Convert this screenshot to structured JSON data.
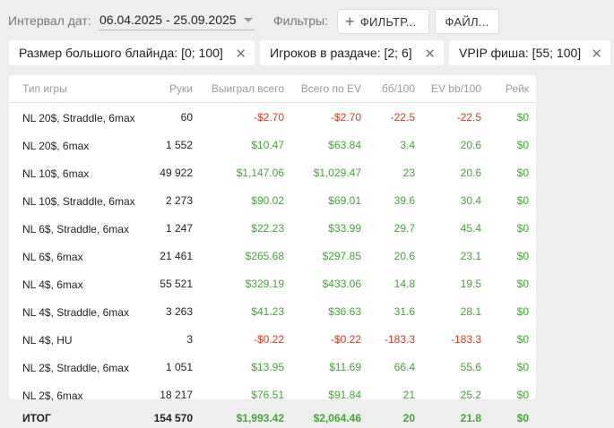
{
  "header": {
    "interval_label": "Интервал дат:",
    "date_range": "06.04.2025 - 25.09.2025",
    "filters_label": "Фильтры:",
    "filter_button_label": "ФИЛЬТР...",
    "file_button_label": "ФАЙЛ..."
  },
  "chips": [
    {
      "label": "Размер большого блайнда: [0; 100]"
    },
    {
      "label": "Игроков в раздаче: [2; 6]"
    },
    {
      "label": "VPIP фиша: [55; 100]"
    }
  ],
  "table": {
    "columns": [
      "Тип игры",
      "Руки",
      "Выиграл всего",
      "Всего по EV",
      "бб/100",
      "EV bb/100",
      "Рейк"
    ],
    "rows": [
      {
        "game": "NL 20$, Straddle, 6max",
        "hands": "60",
        "won": "-$2.70",
        "ev": "-$2.70",
        "bb100": "-22.5",
        "evbb100": "-22.5",
        "rake": "$0"
      },
      {
        "game": "NL 20$, 6max",
        "hands": "1 552",
        "won": "$10.47",
        "ev": "$63.84",
        "bb100": "3.4",
        "evbb100": "20.6",
        "rake": "$0"
      },
      {
        "game": "NL 10$, 6max",
        "hands": "49 922",
        "won": "$1,147.06",
        "ev": "$1,029.47",
        "bb100": "23",
        "evbb100": "20.6",
        "rake": "$0"
      },
      {
        "game": "NL 10$, Straddle, 6max",
        "hands": "2 273",
        "won": "$90.02",
        "ev": "$69.01",
        "bb100": "39.6",
        "evbb100": "30.4",
        "rake": "$0"
      },
      {
        "game": "NL 6$, Straddle, 6max",
        "hands": "1 247",
        "won": "$22.23",
        "ev": "$33.99",
        "bb100": "29.7",
        "evbb100": "45.4",
        "rake": "$0"
      },
      {
        "game": "NL 6$, 6max",
        "hands": "21 461",
        "won": "$265.68",
        "ev": "$297.85",
        "bb100": "20.6",
        "evbb100": "23.1",
        "rake": "$0"
      },
      {
        "game": "NL 4$, 6max",
        "hands": "55 521",
        "won": "$329.19",
        "ev": "$433.06",
        "bb100": "14.8",
        "evbb100": "19.5",
        "rake": "$0"
      },
      {
        "game": "NL 4$, Straddle, 6max",
        "hands": "3 263",
        "won": "$41.23",
        "ev": "$36.63",
        "bb100": "31.6",
        "evbb100": "28.1",
        "rake": "$0"
      },
      {
        "game": "NL 4$, HU",
        "hands": "3",
        "won": "-$0.22",
        "ev": "-$0.22",
        "bb100": "-183.3",
        "evbb100": "-183.3",
        "rake": "$0"
      },
      {
        "game": "NL 2$, Straddle, 6max",
        "hands": "1 051",
        "won": "$13.95",
        "ev": "$11.69",
        "bb100": "66.4",
        "evbb100": "55.6",
        "rake": "$0"
      },
      {
        "game": "NL 2$, 6max",
        "hands": "18 217",
        "won": "$76.51",
        "ev": "$91.84",
        "bb100": "21",
        "evbb100": "25.2",
        "rake": "$0"
      }
    ],
    "total": {
      "game": "ИТОГ",
      "hands": "154 570",
      "won": "$1,993.42",
      "ev": "$2,064.46",
      "bb100": "20",
      "evbb100": "21.8",
      "rake": "$0"
    }
  },
  "colors": {
    "positive": "#43a636",
    "negative": "#e0391f"
  }
}
